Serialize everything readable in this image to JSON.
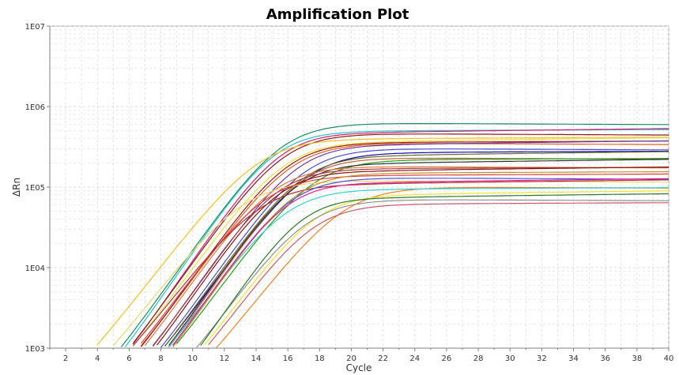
{
  "chart_data": {
    "type": "line",
    "title": "Amplification Plot",
    "xlabel": "Cycle",
    "ylabel": "ΔRn",
    "xlim": [
      1,
      40
    ],
    "ylim": [
      1000,
      10000000
    ],
    "yscale": "log",
    "grid": true,
    "legend": "none",
    "x_ticks": [
      "2",
      "4",
      "6",
      "8",
      "10",
      "12",
      "14",
      "16",
      "18",
      "20",
      "22",
      "24",
      "26",
      "28",
      "30",
      "32",
      "34",
      "36",
      "38",
      "40"
    ],
    "y_ticks": [
      "1E03",
      "1E04",
      "1E05",
      "1E06",
      "1E07"
    ],
    "curves": [
      {
        "color": "#1a8a5a",
        "midpoint": 15.6,
        "plateau": 620000,
        "slope": 1.55
      },
      {
        "color": "#22c5c5",
        "midpoint": 15.2,
        "plateau": 500000,
        "slope": 1.5
      },
      {
        "color": "#d01e6e",
        "midpoint": 15.5,
        "plateau": 480000,
        "slope": 1.5
      },
      {
        "color": "#8b1a1a",
        "midpoint": 15.7,
        "plateau": 460000,
        "slope": 1.55
      },
      {
        "color": "#f0c020",
        "midpoint": 14.2,
        "plateau": 400000,
        "slope": 1.7
      },
      {
        "color": "#e8e040",
        "midpoint": 15.8,
        "plateau": 370000,
        "slope": 1.6
      },
      {
        "color": "#e06020",
        "midpoint": 16.2,
        "plateau": 350000,
        "slope": 1.6
      },
      {
        "color": "#a01010",
        "midpoint": 16.0,
        "plateau": 360000,
        "slope": 1.55
      },
      {
        "color": "#6a3aa8",
        "midpoint": 16.6,
        "plateau": 340000,
        "slope": 1.55
      },
      {
        "color": "#4a4ad0",
        "midpoint": 17.0,
        "plateau": 300000,
        "slope": 1.55
      },
      {
        "color": "#0a0ab0",
        "midpoint": 17.3,
        "plateau": 270000,
        "slope": 1.6
      },
      {
        "color": "#6a6a20",
        "midpoint": 16.9,
        "plateau": 250000,
        "slope": 1.55
      },
      {
        "color": "#c06040",
        "midpoint": 16.8,
        "plateau": 230000,
        "slope": 1.5
      },
      {
        "color": "#20a020",
        "midpoint": 17.6,
        "plateau": 220000,
        "slope": 1.6
      },
      {
        "color": "#303030",
        "midpoint": 16.5,
        "plateau": 200000,
        "slope": 1.5
      },
      {
        "color": "#e07a40",
        "midpoint": 15.1,
        "plateau": 180000,
        "slope": 1.55
      },
      {
        "color": "#a04040",
        "midpoint": 15.3,
        "plateau": 170000,
        "slope": 1.5
      },
      {
        "color": "#901010",
        "midpoint": 15.4,
        "plateau": 160000,
        "slope": 1.5
      },
      {
        "color": "#f08020",
        "midpoint": 19.5,
        "plateau": 100000,
        "slope": 1.7
      },
      {
        "color": "#30d0d0",
        "midpoint": 15.9,
        "plateau": 95000,
        "slope": 1.6
      },
      {
        "color": "#f4e030",
        "midpoint": 17.8,
        "plateau": 82000,
        "slope": 1.6
      },
      {
        "color": "#909090",
        "midpoint": 17.2,
        "plateau": 70000,
        "slope": 1.6
      },
      {
        "color": "#c85a6a",
        "midpoint": 17.6,
        "plateau": 62000,
        "slope": 1.6
      },
      {
        "color": "#2a7a2a",
        "midpoint": 16.8,
        "plateau": 75000,
        "slope": 1.45
      },
      {
        "color": "#e8d870",
        "midpoint": 13.2,
        "plateau": 120000,
        "slope": 1.7
      },
      {
        "color": "#d84040",
        "midpoint": 14.6,
        "plateau": 140000,
        "slope": 1.6
      },
      {
        "color": "#b03030",
        "midpoint": 14.3,
        "plateau": 110000,
        "slope": 1.7
      },
      {
        "color": "#5050e0",
        "midpoint": 16.1,
        "plateau": 130000,
        "slope": 1.5
      },
      {
        "color": "#c09020",
        "midpoint": 16.4,
        "plateau": 150000,
        "slope": 1.5
      },
      {
        "color": "#e02090",
        "midpoint": 15.9,
        "plateau": 115000,
        "slope": 1.5
      }
    ]
  }
}
